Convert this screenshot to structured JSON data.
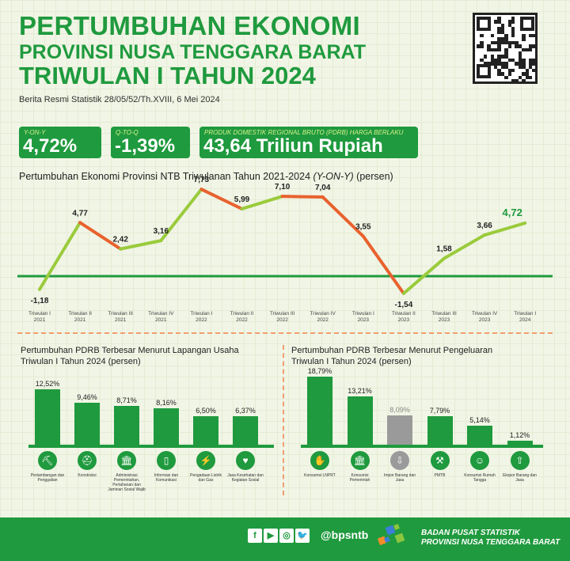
{
  "header": {
    "title_line1": "PERTUMBUHAN EKONOMI",
    "title_line2": "PROVINSI NUSA TENGGARA BARAT",
    "title_line3": "TRIWULAN I TAHUN 2024",
    "subtitle": "Berita Resmi Statistik 28/05/52/Th.XVIII, 6 Mei 2024"
  },
  "stats": [
    {
      "label": "Y-ON-Y",
      "value": "4,72%"
    },
    {
      "label": "Q-TO-Q",
      "value": "-1,39%"
    },
    {
      "label": "PRODUK DOMESTIK REGIONAL BRUTO (PDRB) HARGA BERLAKU",
      "value": "43,64 Triliun Rupiah"
    }
  ],
  "colors": {
    "green": "#1f9a3e",
    "lightgreen": "#9acb3c",
    "orange": "#e8622e",
    "gray": "#9a9a9a"
  },
  "chart_data": [
    {
      "type": "line",
      "title": "Pertumbuhan Ekonomi Provinsi NTB Triwulanan Tahun 2021-2024",
      "title_italic": "(Y-ON-Y)",
      "title_suffix": "(persen)",
      "categories": [
        [
          "Triwulan I",
          "2021"
        ],
        [
          "Triwulan II",
          "2021"
        ],
        [
          "Triwulan III",
          "2021"
        ],
        [
          "Triwulan IV",
          "2021"
        ],
        [
          "Triwulan I",
          "2022"
        ],
        [
          "Triwulan II",
          "2022"
        ],
        [
          "Triwulan III",
          "2022"
        ],
        [
          "Triwulan IV",
          "2022"
        ],
        [
          "Triwulan I",
          "2023"
        ],
        [
          "Triwulan II",
          "2023"
        ],
        [
          "Triwulan III",
          "2023"
        ],
        [
          "Triwulan IV",
          "2023"
        ],
        [
          "Triwulan I",
          "2024"
        ]
      ],
      "values": [
        -1.18,
        4.77,
        2.42,
        3.16,
        7.73,
        5.99,
        7.1,
        7.04,
        3.55,
        -1.54,
        1.58,
        3.66,
        4.72
      ],
      "labels": [
        "-1,18",
        "4,77",
        "2,42",
        "3,16",
        "7,73",
        "5,99",
        "7,10",
        "7,04",
        "3,55",
        "-1,54",
        "1,58",
        "3,66",
        "4,72"
      ],
      "segment_colors": "green rising, orange falling",
      "ylim": [
        -2.5,
        9
      ]
    },
    {
      "type": "bar",
      "title_line1": "Pertumbuhan PDRB Terbesar Menurut Lapangan Usaha",
      "title_line2": "Triwulan I Tahun 2024 (persen)",
      "categories": [
        "Pertambangan dan Penggalian",
        "Konstruksi",
        "Administrasi Pemerintahan, Pertahanan dan Jaminan Sosial Wajib",
        "Informasi dan Komunikasi",
        "Pengadaan Listrik dan Gas",
        "Jasa Kesehatan dan Kegiatan Sosial"
      ],
      "icons": [
        "mining-icon",
        "helmet-icon",
        "government-building-icon",
        "smartphone-icon",
        "electricity-icon",
        "health-heart-icon"
      ],
      "values": [
        12.52,
        9.46,
        8.71,
        8.16,
        6.5,
        6.37
      ],
      "labels": [
        "12,52%",
        "9,46%",
        "8,71%",
        "8,16%",
        "6,50%",
        "6,37%"
      ],
      "ylim": [
        0,
        14
      ]
    },
    {
      "type": "bar",
      "title_line1": "Pertumbuhan PDRB Terbesar Menurut Pengeluaran",
      "title_line2": "Triwulan I Tahun 2024 (persen)",
      "categories": [
        "Konsumsi LNPRT",
        "Konsumsi Pemerintah",
        "Impor Barang dan Jasa",
        "PMTB",
        "Konsumsi Rumah Tangga",
        "Ekspor Barang dan Jasa"
      ],
      "icons": [
        "hand-person-icon",
        "government-building-icon",
        "import-icon",
        "construction-icon",
        "family-icon",
        "export-icon"
      ],
      "values": [
        18.79,
        13.21,
        8.09,
        7.79,
        5.14,
        1.12
      ],
      "labels": [
        "18,79%",
        "13,21%",
        "8,09%",
        "7,79%",
        "5,14%",
        "1,12%"
      ],
      "highlight_gray_index": 2,
      "ylim": [
        0,
        21
      ]
    }
  ],
  "footer": {
    "social": [
      "f",
      "▶",
      "◎",
      "🐦"
    ],
    "handle": "@bpsntb",
    "org_line1": "BADAN PUSAT STATISTIK",
    "org_line2": "PROVINSI NUSA TENGGARA BARAT"
  }
}
